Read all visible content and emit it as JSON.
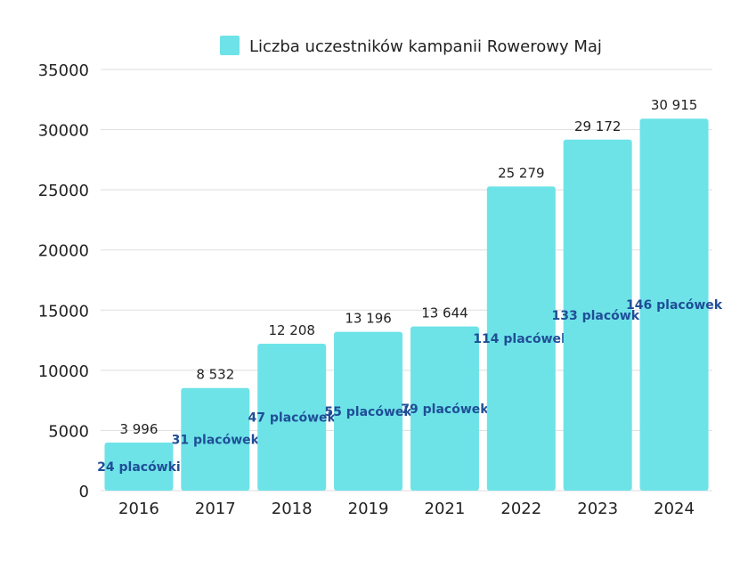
{
  "chart_data": {
    "type": "bar",
    "legend": {
      "label": "Liczba uczestników kampanii Rowerowy Maj",
      "position": "top"
    },
    "categories": [
      "2016",
      "2017",
      "2018",
      "2019",
      "2021",
      "2022",
      "2023",
      "2024"
    ],
    "series": [
      {
        "name": "Liczba uczestników kampanii Rowerowy Maj",
        "values": [
          3996,
          8532,
          12208,
          13196,
          13644,
          25279,
          29172,
          30915
        ],
        "value_labels": [
          "3 996",
          "8 532",
          "12 208",
          "13 196",
          "13 644",
          "25 279",
          "29 172",
          "30 915"
        ]
      }
    ],
    "inner_labels": [
      "24 placówki",
      "31 placówek",
      "47 placówek",
      "55 placówek",
      "79 placówek",
      "114 placówek",
      "133 placówki",
      "146 placówek"
    ],
    "ylim": [
      0,
      35000
    ],
    "yticks": [
      0,
      5000,
      10000,
      15000,
      20000,
      25000,
      30000,
      35000
    ],
    "ytick_labels": [
      "0",
      "5000",
      "10000",
      "15000",
      "20000",
      "25000",
      "30000",
      "35000"
    ],
    "grid": true,
    "colors": {
      "bar": "#6de3e8",
      "inner_label": "#1f4e96",
      "grid": "#dddddd",
      "text": "#222222"
    }
  }
}
